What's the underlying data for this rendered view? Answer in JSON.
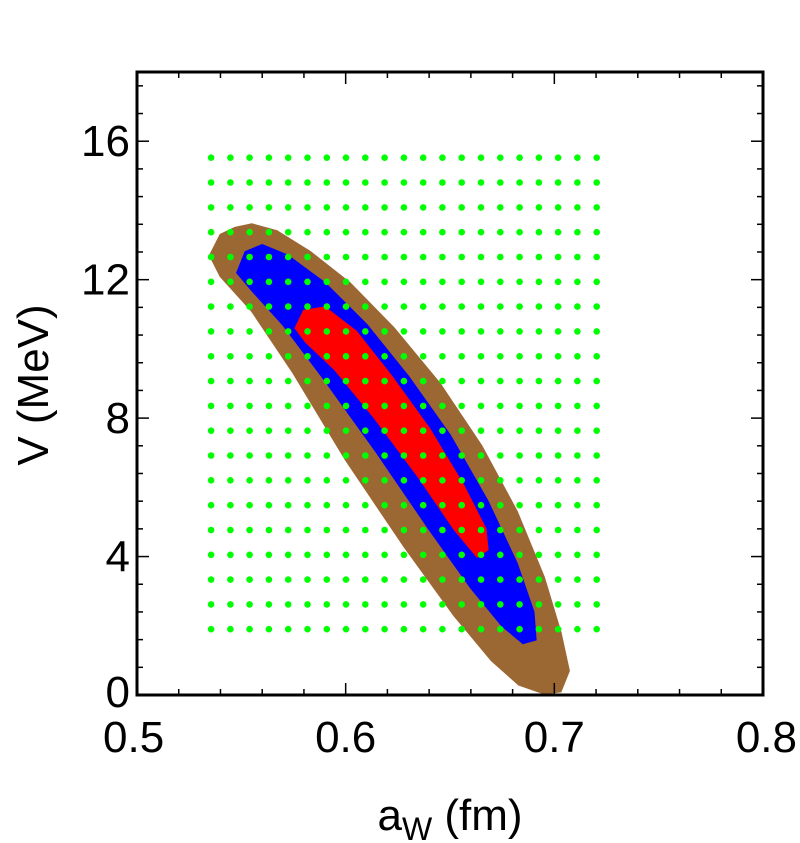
{
  "chart_data": {
    "type": "contour-scatter",
    "title": "",
    "xlabel": {
      "main": "a",
      "sub": "W",
      "rest": " (fm)"
    },
    "ylabel": "V (MeV)",
    "xlim": [
      0.5,
      0.8
    ],
    "ylim": [
      0,
      18
    ],
    "x_ticks": [
      {
        "value": 0.5,
        "label": "0.5"
      },
      {
        "value": 0.6,
        "label": "0.6"
      },
      {
        "value": 0.7,
        "label": "0.7"
      },
      {
        "value": 0.8,
        "label": "0.8"
      }
    ],
    "y_ticks": [
      {
        "value": 0,
        "label": "0"
      },
      {
        "value": 4,
        "label": "4"
      },
      {
        "value": 8,
        "label": "8"
      },
      {
        "value": 12,
        "label": "12"
      },
      {
        "value": 16,
        "label": "16"
      }
    ],
    "x_minor_step": 0.02,
    "y_minor_step": 0.8,
    "grid": false,
    "regions": [
      {
        "name": "outer",
        "color": "#9b6834",
        "polygon": [
          [
            0.535,
            12.7
          ],
          [
            0.54,
            13.3
          ],
          [
            0.547,
            13.5
          ],
          [
            0.555,
            13.6
          ],
          [
            0.567,
            13.4
          ],
          [
            0.583,
            12.8
          ],
          [
            0.602,
            11.9
          ],
          [
            0.623,
            10.6
          ],
          [
            0.645,
            9.0
          ],
          [
            0.665,
            7.2
          ],
          [
            0.682,
            5.3
          ],
          [
            0.695,
            3.4
          ],
          [
            0.703,
            1.8
          ],
          [
            0.707,
            0.7
          ],
          [
            0.703,
            0.1
          ],
          [
            0.695,
            0.05
          ],
          [
            0.683,
            0.3
          ],
          [
            0.67,
            1.0
          ],
          [
            0.652,
            2.3
          ],
          [
            0.628,
            4.3
          ],
          [
            0.6,
            6.8
          ],
          [
            0.575,
            9.3
          ],
          [
            0.555,
            11.1
          ],
          [
            0.54,
            12.1
          ]
        ]
      },
      {
        "name": "middle",
        "color": "#0000ff",
        "polygon": [
          [
            0.548,
            12.2
          ],
          [
            0.552,
            12.8
          ],
          [
            0.56,
            13.0
          ],
          [
            0.572,
            12.7
          ],
          [
            0.59,
            11.9
          ],
          [
            0.61,
            10.7
          ],
          [
            0.63,
            9.2
          ],
          [
            0.65,
            7.5
          ],
          [
            0.668,
            5.6
          ],
          [
            0.682,
            3.8
          ],
          [
            0.69,
            2.4
          ],
          [
            0.691,
            1.6
          ],
          [
            0.685,
            1.5
          ],
          [
            0.675,
            2.0
          ],
          [
            0.66,
            3.1
          ],
          [
            0.64,
            4.8
          ],
          [
            0.615,
            7.0
          ],
          [
            0.59,
            9.1
          ],
          [
            0.57,
            10.7
          ],
          [
            0.555,
            11.7
          ]
        ]
      },
      {
        "name": "inner",
        "color": "#ff0000",
        "polygon": [
          [
            0.576,
            10.6
          ],
          [
            0.58,
            11.1
          ],
          [
            0.59,
            11.2
          ],
          [
            0.605,
            10.5
          ],
          [
            0.622,
            9.2
          ],
          [
            0.64,
            7.7
          ],
          [
            0.656,
            6.1
          ],
          [
            0.667,
            4.8
          ],
          [
            0.668,
            4.2
          ],
          [
            0.663,
            4.0
          ],
          [
            0.652,
            4.8
          ],
          [
            0.635,
            6.3
          ],
          [
            0.614,
            8.0
          ],
          [
            0.595,
            9.4
          ],
          [
            0.581,
            10.2
          ]
        ]
      }
    ],
    "grid_points": {
      "color": "#00ff00",
      "x_start": 0.5355,
      "x_step": 0.00924,
      "x_count": 21,
      "y_start": 1.9,
      "y_step": 0.717,
      "y_count": 20
    }
  }
}
